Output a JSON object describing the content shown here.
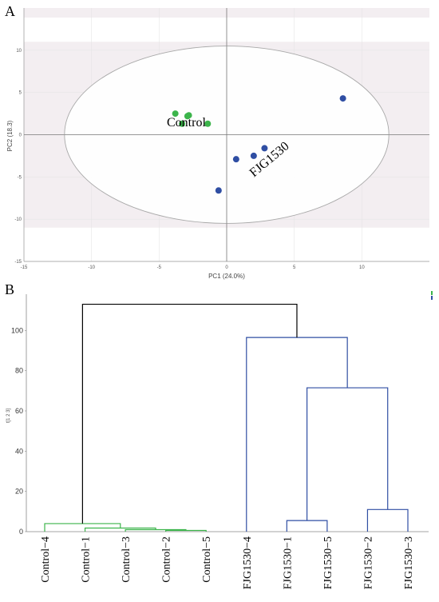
{
  "chart_data": [
    {
      "panel": "A",
      "type": "scatter",
      "xlabel": "PC1 (24.0%)",
      "ylabel": "PC2 (18.3)",
      "xlim": [
        -15,
        15
      ],
      "ylim": [
        -15,
        15
      ],
      "xticks": [
        -15,
        -10,
        -5,
        0,
        5,
        10
      ],
      "yticks": [
        10,
        5,
        0,
        -5,
        -10,
        -15
      ],
      "grid": true,
      "ellipse": true,
      "series": [
        {
          "name": "Control",
          "color": "#3cb44b",
          "points": [
            [
              -3.8,
              2.5
            ],
            [
              -2.9,
              2.2
            ],
            [
              -2.8,
              2.3
            ],
            [
              -3.3,
              1.3
            ],
            [
              -1.4,
              1.3
            ]
          ]
        },
        {
          "name": "FJG1530",
          "color": "#2f4ea3",
          "points": [
            [
              8.6,
              4.3
            ],
            [
              2.8,
              -1.6
            ],
            [
              2.0,
              -2.5
            ],
            [
              0.7,
              -2.9
            ],
            [
              -0.6,
              -6.6
            ]
          ]
        }
      ]
    },
    {
      "panel": "B",
      "type": "dendrogram",
      "ylabel": "t[1 2 3]",
      "ylim": [
        0,
        118
      ],
      "yticks": [
        0,
        20,
        40,
        60,
        80,
        100
      ],
      "leaves": [
        "Control−4",
        "Control−1",
        "Control−3",
        "Control−2",
        "Control−5",
        "FJG1530−4",
        "FJG1530−1",
        "FJG1530−5",
        "FJG1530−2",
        "FJG1530−3"
      ],
      "colors": {
        "control": "#3cb44b",
        "fjg": "#2f4ea3",
        "root": "#000000"
      },
      "merges": [
        {
          "left": 3,
          "right": 4,
          "height": 0.6,
          "cluster": "control"
        },
        {
          "left": 2,
          "right": "m0",
          "height": 1.0,
          "cluster": "control"
        },
        {
          "left": 1,
          "right": "m1",
          "height": 1.8,
          "cluster": "control"
        },
        {
          "left": 0,
          "right": "m2",
          "height": 4.0,
          "cluster": "control"
        },
        {
          "left": 6,
          "right": 7,
          "height": 5.5,
          "cluster": "fjg"
        },
        {
          "left": 8,
          "right": 9,
          "height": 11.0,
          "cluster": "fjg"
        },
        {
          "left": "m4",
          "right": "m5",
          "height": 71.5,
          "cluster": "fjg"
        },
        {
          "left": 5,
          "right": "m6",
          "height": 96.5,
          "cluster": "fjg"
        },
        {
          "left": "m3",
          "right": "m7",
          "height": 113.0,
          "cluster": "root"
        }
      ]
    }
  ]
}
